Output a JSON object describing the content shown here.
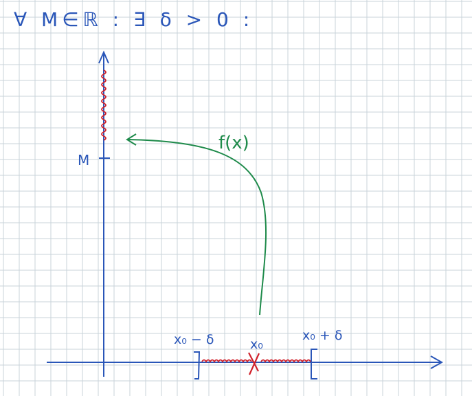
{
  "note": {
    "quantifier": "∀ M∈ℝ :  ∃ δ > 0 :",
    "function_label": "f(x)",
    "m_label": "M",
    "left_label": "x₀ − δ",
    "center_label": "x₀",
    "right_label": "x₀ + δ"
  },
  "colors": {
    "grid": "#c9d3da",
    "ink": "#2a56b8",
    "green": "#1e8a4a",
    "red": "#d0202a"
  }
}
